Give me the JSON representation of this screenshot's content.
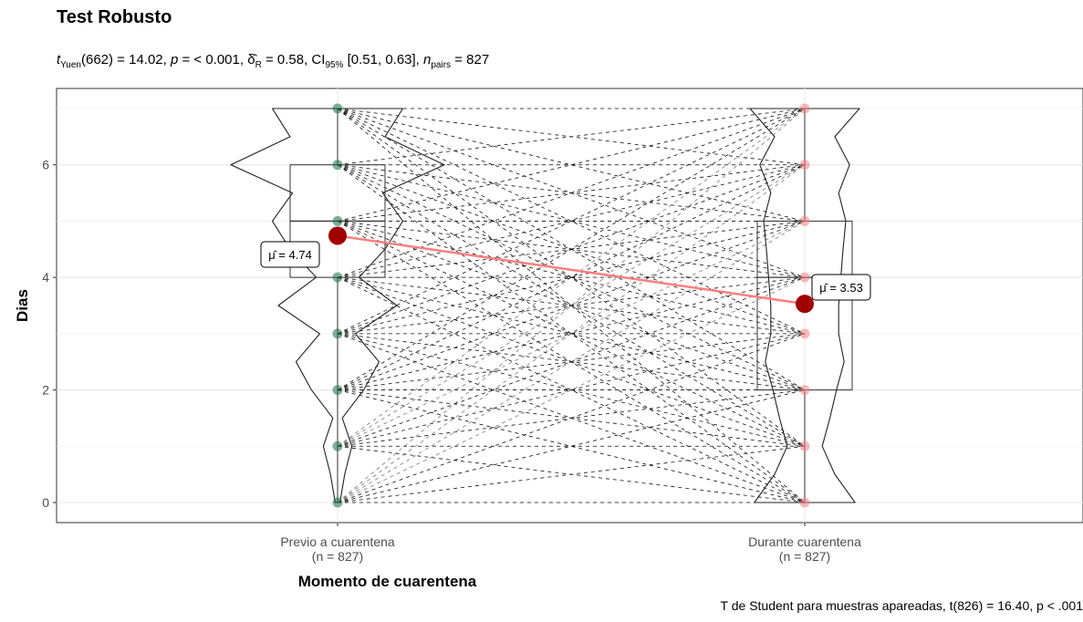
{
  "title": "Test Robusto",
  "subtitle": {
    "t_sym": "t",
    "t_sub": "Yuen",
    "t_stat": "(662) = 14.02, ",
    "p_sym": "p",
    "p_val": " = < 0.001, ",
    "d_sym": "δ̂",
    "d_sub": "R",
    "d_val": " = 0.58, CI",
    "ci_sub": "95%",
    "ci_val": " [0.51, 0.63], ",
    "n_sym": "n",
    "n_sub": "pairs",
    "n_val": " = 827"
  },
  "caption": "T de Student para muestras apareadas, t(826) = 16.40, p < .001",
  "chart_data": {
    "type": "violin-box-paired",
    "xlabel": "Momento de cuarentena",
    "ylabel": "Dias",
    "ylim": [
      -0.35,
      7.35
    ],
    "yticks": [
      0,
      2,
      4,
      6
    ],
    "grid": true,
    "categories": [
      {
        "label": "Previo a cuarentena",
        "n_label": "(n = 827)"
      },
      {
        "label": "Durante cuarentena",
        "n_label": "(n = 827)"
      }
    ],
    "series": [
      {
        "values": [
          0,
          1,
          2,
          3,
          4,
          5,
          6,
          7
        ],
        "mean": 4.74,
        "mean_label": "μ̂ = 4.74",
        "box": {
          "q1": 4,
          "median": 5,
          "q3": 6,
          "min": 0,
          "max": 7
        },
        "density": [
          0.02,
          0.06,
          0.12,
          0.04,
          0.22,
          0.35,
          0.15,
          0.5,
          0.18,
          0.4,
          0.55,
          0.38,
          0.9,
          0.4,
          0.55
        ],
        "color": "#1b6b4a"
      },
      {
        "values": [
          0,
          1,
          2,
          3,
          4,
          5,
          6,
          7
        ],
        "mean": 3.53,
        "mean_label": "μ̂ = 3.53",
        "box": {
          "q1": 2,
          "median": 4,
          "q3": 5,
          "min": 0,
          "max": 7
        },
        "density": [
          0.92,
          0.55,
          0.32,
          0.46,
          0.58,
          0.72,
          0.62,
          0.62,
          0.66,
          0.7,
          0.75,
          0.62,
          0.82,
          0.55,
          1.0
        ],
        "color": "#f08080"
      }
    ],
    "mean_line_color": "#ff7f7f",
    "mean_point_color": "#a00000"
  }
}
